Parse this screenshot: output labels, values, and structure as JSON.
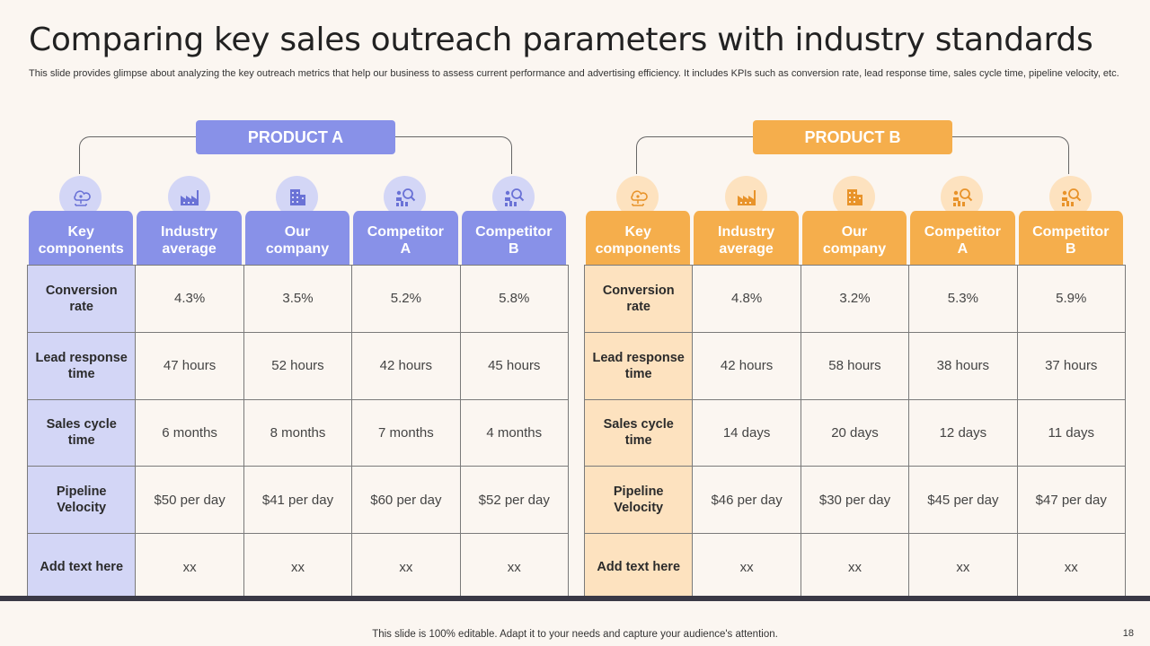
{
  "slide": {
    "title": "Comparing key sales outreach parameters with industry standards",
    "subtitle": "This slide provides glimpse about analyzing the key outreach metrics that help our business to assess current performance and advertising efficiency. It includes KPIs such as conversion rate, lead response time, sales cycle time, pipeline velocity, etc.",
    "footer": "This slide is 100% editable. Adapt it to your needs and capture your audience's attention.",
    "page_number": "18"
  },
  "colors": {
    "product_a": "#8891e8",
    "product_a_light": "#d3d6f6",
    "product_b": "#f5ae4c",
    "product_b_light": "#fde2bf",
    "background": "#fbf6f1"
  },
  "headers": [
    {
      "line1": "Key",
      "line2": "components",
      "icon": "cloud-network-icon"
    },
    {
      "line1": "Industry",
      "line2": "average",
      "icon": "factory-icon"
    },
    {
      "line1": "Our",
      "line2": "company",
      "icon": "office-building-icon"
    },
    {
      "line1": "Competitor",
      "line2": "A",
      "icon": "person-search-chart-icon"
    },
    {
      "line1": "Competitor",
      "line2": "B",
      "icon": "person-search-chart-icon"
    }
  ],
  "product_a": {
    "label": "PRODUCT A",
    "rows": [
      {
        "key": "Conversion rate",
        "values": [
          "4.3%",
          "3.5%",
          "5.2%",
          "5.8%"
        ]
      },
      {
        "key": "Lead response time",
        "values": [
          "47 hours",
          "52 hours",
          "42 hours",
          "45 hours"
        ]
      },
      {
        "key": "Sales cycle time",
        "values": [
          "6 months",
          "8 months",
          "7 months",
          "4 months"
        ]
      },
      {
        "key": "Pipeline Velocity",
        "values": [
          "$50 per day",
          "$41 per day",
          "$60 per day",
          "$52 per day"
        ]
      },
      {
        "key": "Add text here",
        "values": [
          "xx",
          "xx",
          "xx",
          "xx"
        ]
      }
    ]
  },
  "product_b": {
    "label": "PRODUCT B",
    "rows": [
      {
        "key": "Conversion rate",
        "values": [
          "4.8%",
          "3.2%",
          "5.3%",
          "5.9%"
        ]
      },
      {
        "key": "Lead response time",
        "values": [
          "42 hours",
          "58 hours",
          "38 hours",
          "37 hours"
        ]
      },
      {
        "key": "Sales cycle time",
        "values": [
          "14 days",
          "20 days",
          "12 days",
          "11 days"
        ]
      },
      {
        "key": "Pipeline Velocity",
        "values": [
          "$46 per day",
          "$30 per day",
          "$45 per day",
          "$47 per day"
        ]
      },
      {
        "key": "Add text here",
        "values": [
          "xx",
          "xx",
          "xx",
          "xx"
        ]
      }
    ]
  }
}
